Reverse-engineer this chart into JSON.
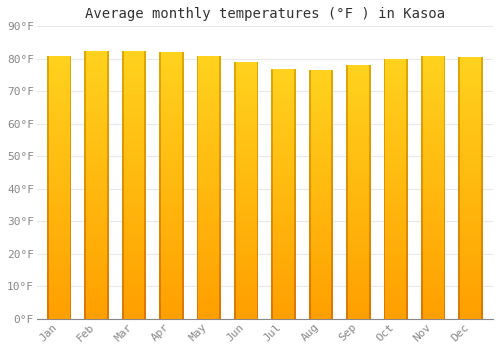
{
  "title": "Average monthly temperatures (°F ) in Kasoa",
  "months": [
    "Jan",
    "Feb",
    "Mar",
    "Apr",
    "May",
    "Jun",
    "Jul",
    "Aug",
    "Sep",
    "Oct",
    "Nov",
    "Dec"
  ],
  "values": [
    81,
    82.5,
    82.5,
    82,
    81,
    79,
    77,
    76.5,
    78,
    80,
    81,
    80.5
  ],
  "ylim": [
    0,
    90
  ],
  "yticks": [
    0,
    10,
    20,
    30,
    40,
    50,
    60,
    70,
    80,
    90
  ],
  "bar_color_center": "#FFCC00",
  "bar_color_bottom": "#FFA500",
  "bar_edge_color": "#CC8800",
  "background_color": "#ffffff",
  "grid_color": "#e8e8e8",
  "title_fontsize": 10,
  "tick_fontsize": 8,
  "title_font": "monospace",
  "tick_font": "monospace"
}
